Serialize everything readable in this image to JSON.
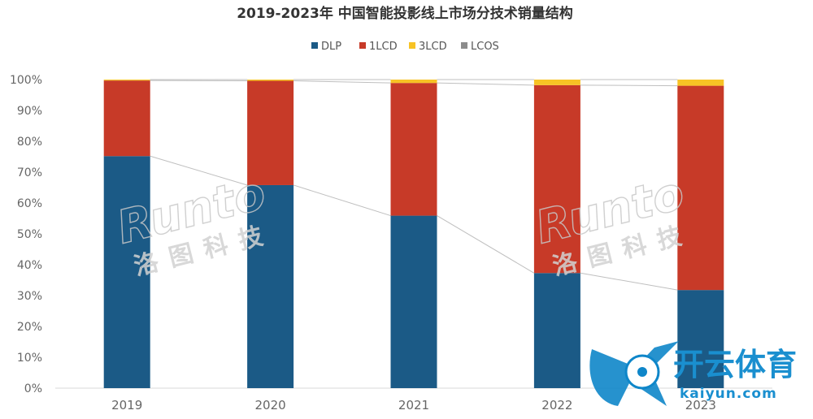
{
  "chart_data": {
    "type": "bar",
    "stacked": true,
    "title": "2019-2023年 中国智能投影线上市场分技术销量结构",
    "categories": [
      "2019",
      "2020",
      "2021",
      "2022",
      "2023"
    ],
    "series": [
      {
        "name": "DLP",
        "color": "#1b5a86",
        "values": [
          75.2,
          65.8,
          55.9,
          37.3,
          31.8
        ]
      },
      {
        "name": "1LCD",
        "color": "#c73a28",
        "values": [
          24.5,
          33.8,
          43.0,
          60.9,
          66.2
        ]
      },
      {
        "name": "3LCD",
        "color": "#f7c325",
        "values": [
          0.3,
          0.4,
          1.1,
          1.8,
          2.0
        ]
      },
      {
        "name": "LCOS",
        "color": "#8c8c8c",
        "values": [
          0.0,
          0.0,
          0.0,
          0.0,
          0.0
        ]
      }
    ],
    "yticks": [
      "0%",
      "10%",
      "20%",
      "30%",
      "40%",
      "50%",
      "60%",
      "70%",
      "80%",
      "90%",
      "100%"
    ],
    "ylim": [
      0,
      100
    ],
    "grid": false,
    "legend_position": "top-center"
  },
  "watermarks": {
    "runto_latin": "Runto",
    "runto_cn": "洛图科技",
    "kaiyun_cn": "开云体育",
    "kaiyun_url": "kaiyun.com"
  }
}
